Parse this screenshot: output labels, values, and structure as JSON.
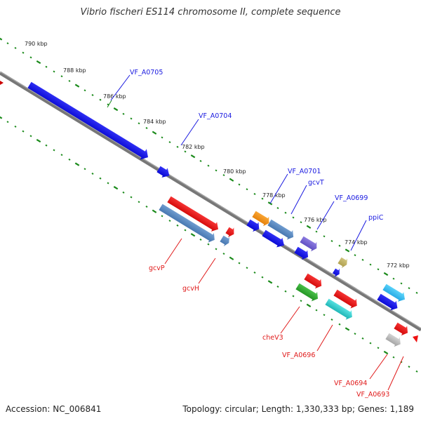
{
  "title": "Vibrio fischeri ES114 chromosome II, complete sequence",
  "footer": {
    "accession": "Accession: NC_006841",
    "stats": "Topology: circular; Length: 1,330,333 bp; Genes: 1,189"
  },
  "colors": {
    "backbone": "#777777",
    "tick": "#1a8a1a",
    "forward_label": "#1a1ae0",
    "reverse_label": "#e01a1a"
  },
  "scale_labels": [
    "790 kbp",
    "788 kbp",
    "786 kbp",
    "784 kbp",
    "782 kbp",
    "780 kbp",
    "778 kbp",
    "776 kbp",
    "774 kbp",
    "772 kbp"
  ],
  "forward_genes": [
    "VF_A0705",
    "VF_A0704",
    "VF_A0701",
    "gcvT",
    "VF_A0699",
    "ppiC"
  ],
  "reverse_genes": [
    "gcvP",
    "gcvH",
    "cheV3",
    "VF_A0696",
    "VF_A0694",
    "VF_A0693"
  ]
}
